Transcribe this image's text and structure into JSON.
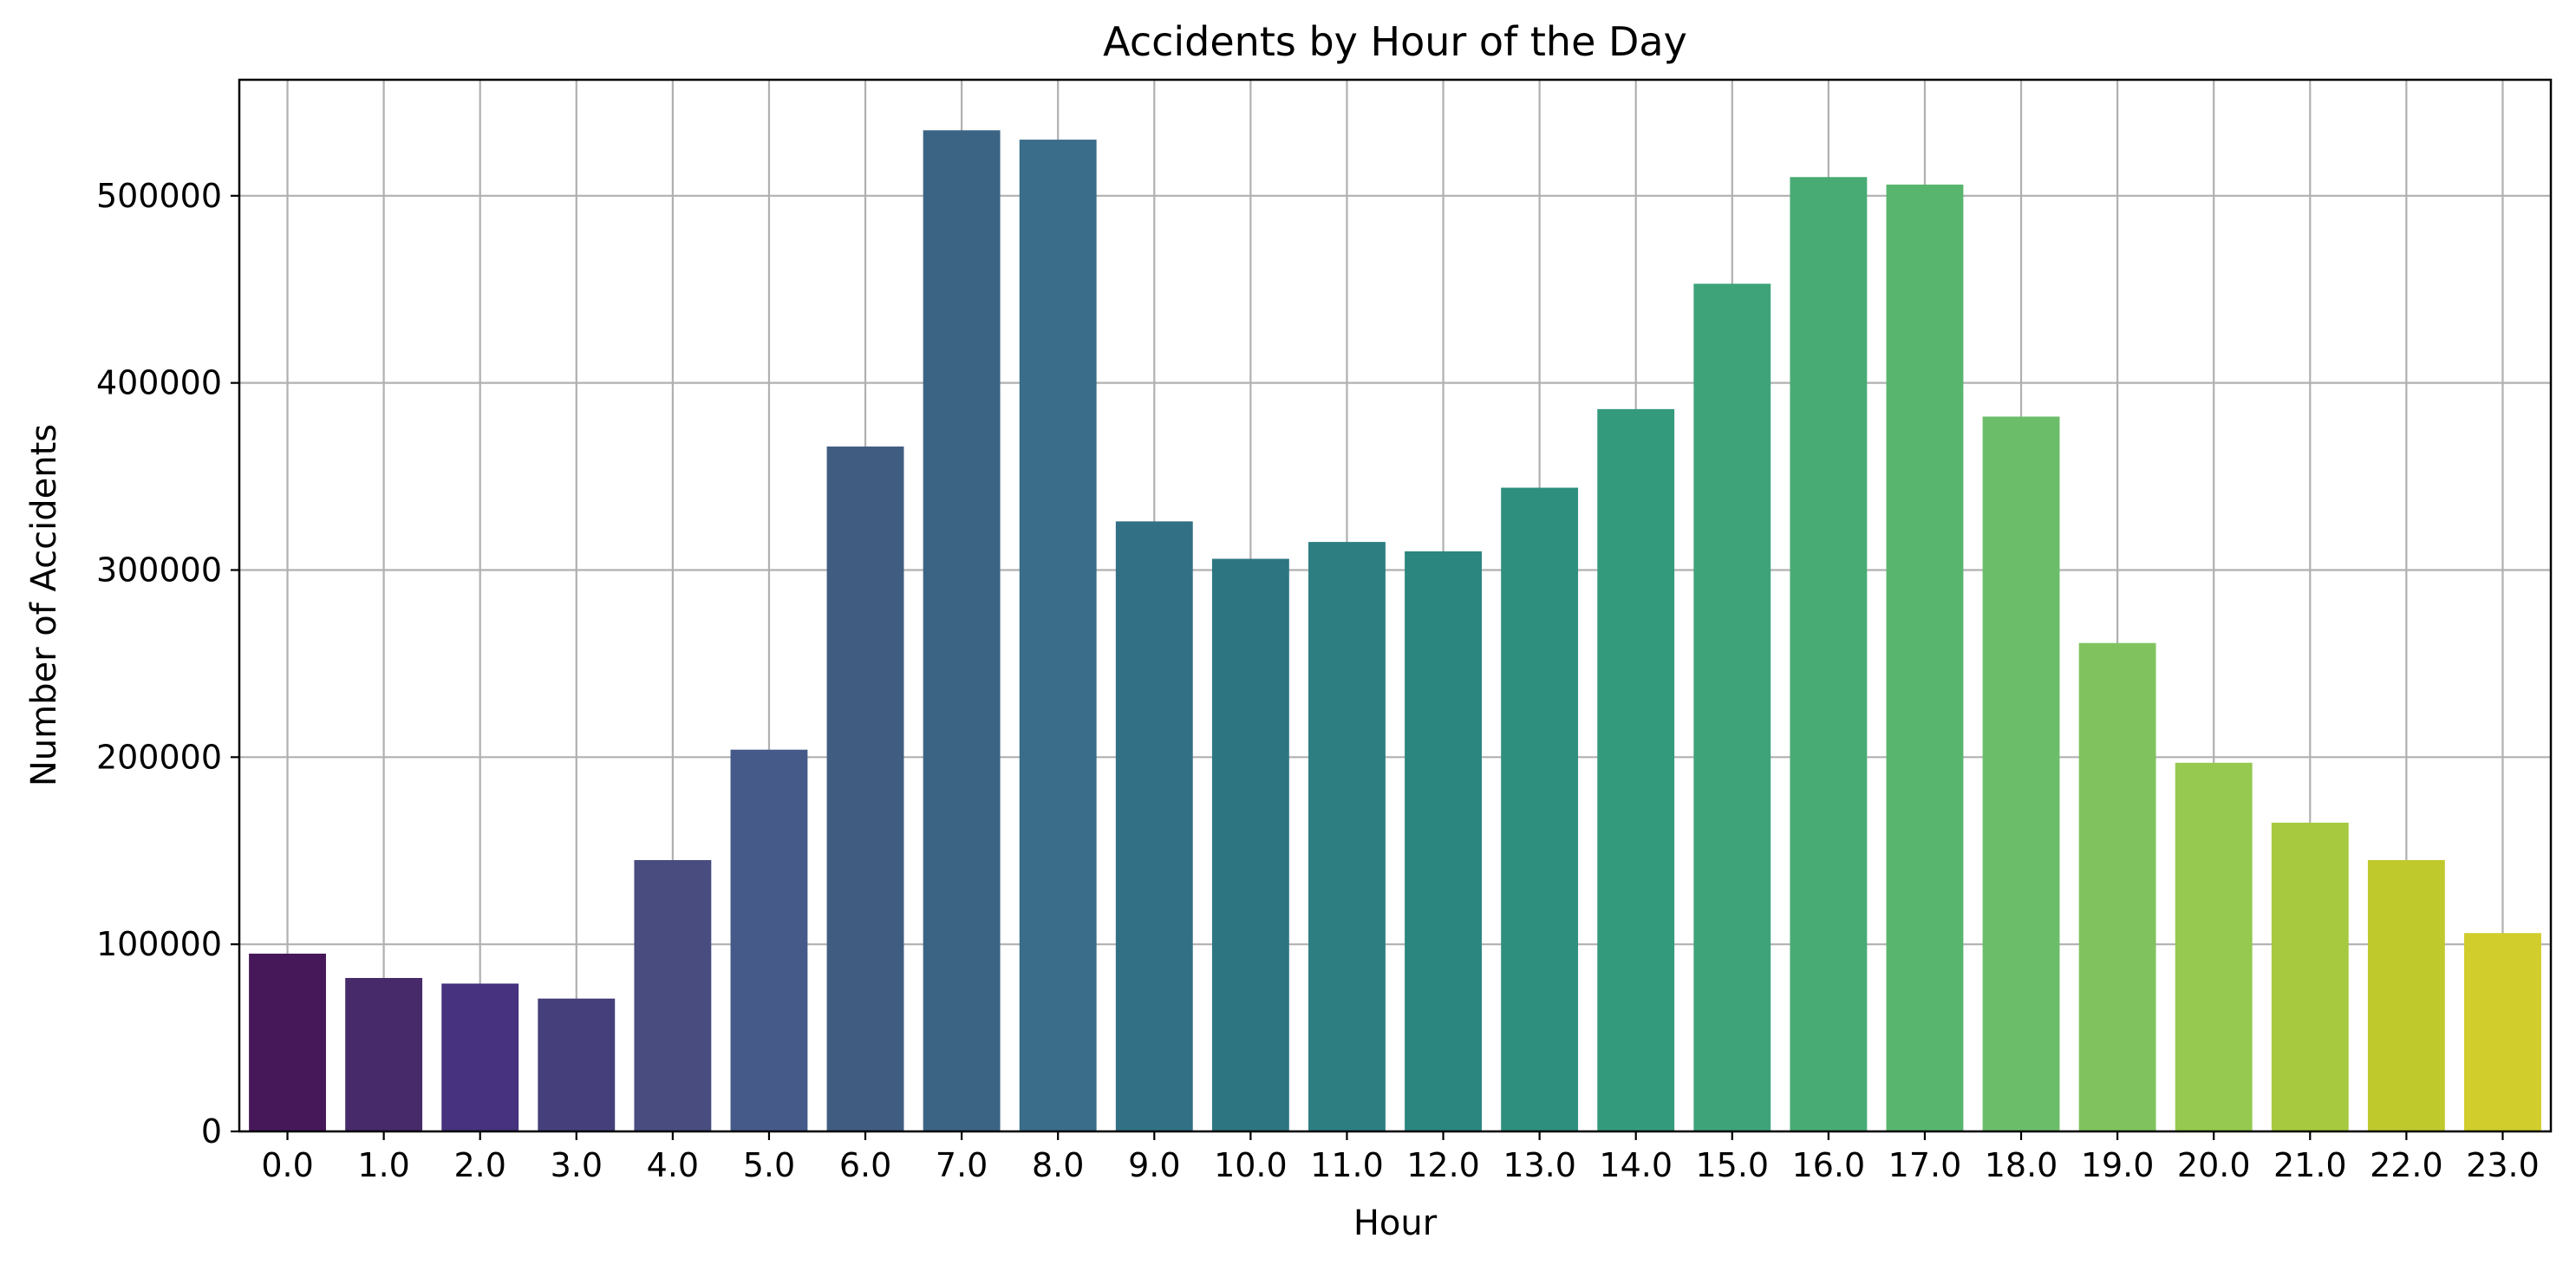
{
  "chart_data": {
    "type": "bar",
    "title": "Accidents by Hour of the Day",
    "xlabel": "Hour",
    "ylabel": "Number of Accidents",
    "categories": [
      "0.0",
      "1.0",
      "2.0",
      "3.0",
      "4.0",
      "5.0",
      "6.0",
      "7.0",
      "8.0",
      "9.0",
      "10.0",
      "11.0",
      "12.0",
      "13.0",
      "14.0",
      "15.0",
      "16.0",
      "17.0",
      "18.0",
      "19.0",
      "20.0",
      "21.0",
      "22.0",
      "23.0"
    ],
    "values": [
      95000,
      82000,
      79000,
      71000,
      145000,
      204000,
      366000,
      535000,
      530000,
      326000,
      306000,
      315000,
      310000,
      344000,
      386000,
      453000,
      510000,
      506000,
      382000,
      261000,
      197000,
      165000,
      145000,
      106000
    ],
    "ylim": [
      0,
      562000
    ],
    "yticks": [
      0,
      100000,
      200000,
      300000,
      400000,
      500000
    ],
    "grid": true,
    "colors": [
      "#46185a",
      "#472a6a",
      "#46327e",
      "#45407b",
      "#484c7e",
      "#455a89",
      "#405c81",
      "#3b6484",
      "#3a6d89",
      "#327085",
      "#2d7581",
      "#2c7e81",
      "#2c8680",
      "#2f8f7e",
      "#349a7c",
      "#3fa37a",
      "#49ab74",
      "#58b56e",
      "#6cbd6a",
      "#80c35e",
      "#95c94f",
      "#a6c93f",
      "#c0c92c",
      "#d0cd2c"
    ]
  }
}
